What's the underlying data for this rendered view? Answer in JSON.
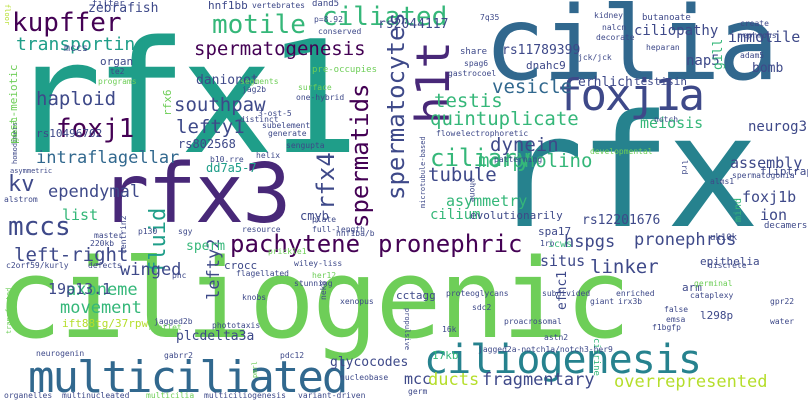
{
  "palette": {
    "dark_purple": "#440154",
    "purple": "#482878",
    "indigo": "#3e4989",
    "blue": "#31688e",
    "teal": "#26828e",
    "teal_green": "#1f9e89",
    "green": "#35b779",
    "light_green": "#6ece58",
    "lime": "#b5de2b",
    "yellow": "#fde725"
  },
  "words": [
    {
      "text": "rfx1"
    },
    {
      "text": "cilia"
    },
    {
      "text": "rfx"
    },
    {
      "text": "ciliogenic"
    },
    {
      "text": "rfx3"
    },
    {
      "text": "multiciliated"
    },
    {
      "text": "ciliogenesis"
    },
    {
      "text": "foxj1a"
    },
    {
      "text": "h1t"
    },
    {
      "text": "pachytene"
    },
    {
      "text": "pronephric"
    },
    {
      "text": "motile"
    },
    {
      "text": "ciliated"
    },
    {
      "text": "kupffer"
    },
    {
      "text": "spermatogenesis"
    },
    {
      "text": "spermatocytes"
    },
    {
      "text": "foxj1"
    },
    {
      "text": "spermatids"
    },
    {
      "text": "rfx4"
    },
    {
      "text": "transporting"
    },
    {
      "text": "ciliary"
    },
    {
      "text": "mccs"
    },
    {
      "text": "left-right"
    },
    {
      "text": "fluid"
    },
    {
      "text": "kv"
    },
    {
      "text": "haploid"
    },
    {
      "text": "southpaw"
    },
    {
      "text": "testis"
    },
    {
      "text": "quintuplicate"
    },
    {
      "text": "vesicle"
    },
    {
      "text": "dynein"
    },
    {
      "text": "morpholino"
    },
    {
      "text": "tubule"
    },
    {
      "text": "lefty1"
    },
    {
      "text": "intraflagellar"
    },
    {
      "text": "ependymal"
    },
    {
      "text": "movement"
    },
    {
      "text": "axoneme"
    },
    {
      "text": "winged"
    },
    {
      "text": "19p13.1"
    },
    {
      "text": "lefty2"
    },
    {
      "text": "linker"
    },
    {
      "text": "pronephros"
    },
    {
      "text": "hspgs"
    },
    {
      "text": "assembly"
    },
    {
      "text": "foxj1b"
    },
    {
      "text": "ion"
    },
    {
      "text": "neurog3"
    },
    {
      "text": "meiosis"
    },
    {
      "text": "immotile"
    },
    {
      "text": "ciliopathy"
    },
    {
      "text": "rs11789399"
    },
    {
      "text": "rs2044117"
    },
    {
      "text": "zebrafish"
    },
    {
      "text": "nap5"
    },
    {
      "text": "bomb"
    },
    {
      "text": "gill"
    },
    {
      "text": "fliptrap"
    },
    {
      "text": "mccs"
    },
    {
      "text": "asymmetry"
    },
    {
      "text": "cilium"
    },
    {
      "text": "sperm"
    },
    {
      "text": "rs12201676"
    },
    {
      "text": "situs"
    },
    {
      "text": "fragmentary"
    },
    {
      "text": "overrepresented"
    },
    {
      "text": "ducts"
    },
    {
      "text": "mcc"
    },
    {
      "text": "glycocodes"
    },
    {
      "text": "plcdelta3a"
    },
    {
      "text": "ift88tg/37rpw"
    },
    {
      "text": "efhc1"
    },
    {
      "text": "rs10496702"
    },
    {
      "text": "rs802568"
    },
    {
      "text": "post-meiotic"
    },
    {
      "text": "rfx6"
    },
    {
      "text": "danionet"
    },
    {
      "text": "cmyb"
    },
    {
      "text": "list"
    },
    {
      "text": "evolutionarily"
    },
    {
      "text": "dnahc9"
    },
    {
      "text": "testisin"
    },
    {
      "text": "erhlich"
    },
    {
      "text": "hnf1bb"
    },
    {
      "text": "dd7a5-7"
    },
    {
      "text": "crocc"
    },
    {
      "text": "spa17"
    },
    {
      "text": "epithelia"
    },
    {
      "text": "arm"
    },
    {
      "text": "l298p"
    },
    {
      "text": "cctagg"
    },
    {
      "text": "17kb"
    },
    {
      "text": "citrine"
    },
    {
      "text": "mind"
    },
    {
      "text": "icws"
    },
    {
      "text": "uk10k"
    },
    {
      "text": "decamers"
    },
    {
      "text": "alms1"
    },
    {
      "text": "spermatogonia"
    },
    {
      "text": "filter"
    },
    {
      "text": "dand5"
    },
    {
      "text": "organ"
    },
    {
      "text": "vertebrates"
    },
    {
      "text": "p=8.92"
    },
    {
      "text": "conserved"
    },
    {
      "text": "7q35"
    },
    {
      "text": "kidney"
    },
    {
      "text": "nalcn"
    },
    {
      "text": "decorate"
    },
    {
      "text": "butanoate"
    },
    {
      "text": "create"
    },
    {
      "text": "nephrons"
    },
    {
      "text": "adam5"
    },
    {
      "text": "heparan"
    },
    {
      "text": "jck/jck"
    },
    {
      "text": "share"
    },
    {
      "text": "spag6"
    },
    {
      "text": "gastrocoel"
    },
    {
      "text": "te2"
    },
    {
      "text": "programs"
    },
    {
      "text": "jag2b"
    },
    {
      "text": "pre-occupies"
    },
    {
      "text": "segments"
    },
    {
      "text": "surface"
    },
    {
      "text": "one-hybrid"
    },
    {
      "text": "3-ost-5"
    },
    {
      "text": "distinct"
    },
    {
      "text": "subelement"
    },
    {
      "text": "generate"
    },
    {
      "text": "sengupta"
    },
    {
      "text": "helix"
    },
    {
      "text": "electrophoretic"
    },
    {
      "text": "flow"
    },
    {
      "text": "notch"
    },
    {
      "text": "homodimers"
    },
    {
      "text": "asymmetric"
    },
    {
      "text": "alstrom"
    },
    {
      "text": "b10.rre"
    },
    {
      "text": "patterning"
    },
    {
      "text": "developmental"
    },
    {
      "text": "microtubule-based"
    },
    {
      "text": "phone"
    },
    {
      "text": "lrd"
    },
    {
      "text": "p130"
    },
    {
      "text": "master"
    },
    {
      "text": "220kb"
    },
    {
      "text": "c2orf59/kurly"
    },
    {
      "text": "defects"
    },
    {
      "text": "sgy"
    },
    {
      "text": "resource"
    },
    {
      "text": "hnf1ba/b"
    },
    {
      "text": "plate"
    },
    {
      "text": "full-length"
    },
    {
      "text": "centrin2"
    },
    {
      "text": "flagellated"
    },
    {
      "text": "wiley-liss"
    },
    {
      "text": "pnc"
    },
    {
      "text": "prickle1"
    },
    {
      "text": "subdivided"
    },
    {
      "text": "enriched"
    },
    {
      "text": "proteoglycans"
    },
    {
      "text": "discrete"
    },
    {
      "text": "germinal"
    },
    {
      "text": "cataplexy"
    },
    {
      "text": "gpr22"
    },
    {
      "text": "water"
    },
    {
      "text": "giant"
    },
    {
      "text": "irx3b"
    },
    {
      "text": "false"
    },
    {
      "text": "emsa"
    },
    {
      "text": "f1bgfp"
    },
    {
      "text": "knobs"
    },
    {
      "text": "jagged2b"
    },
    {
      "text": "phototaxis"
    },
    {
      "text": "stunning"
    },
    {
      "text": "her12"
    },
    {
      "text": "xenopus"
    },
    {
      "text": "sdc2"
    },
    {
      "text": "proacrosomal"
    },
    {
      "text": "propulsive"
    },
    {
      "text": "nek8"
    },
    {
      "text": "16k"
    },
    {
      "text": "rootlet"
    },
    {
      "text": "astn2"
    },
    {
      "text": "jagged2a-notch1a/notch3-her9"
    },
    {
      "text": "neurogenin"
    },
    {
      "text": "gabrr2"
    },
    {
      "text": "pdc12"
    },
    {
      "text": "transfected"
    },
    {
      "text": "pmrl"
    },
    {
      "text": "nucleobase"
    },
    {
      "text": "organelles"
    },
    {
      "text": "multinucleated"
    },
    {
      "text": "multicilia"
    },
    {
      "text": "multiciliogenesis"
    },
    {
      "text": "variant-driven"
    },
    {
      "text": "germ"
    },
    {
      "text": "floor"
    },
    {
      "text": "gabrr1"
    },
    {
      "text": "1ro"
    }
  ]
}
